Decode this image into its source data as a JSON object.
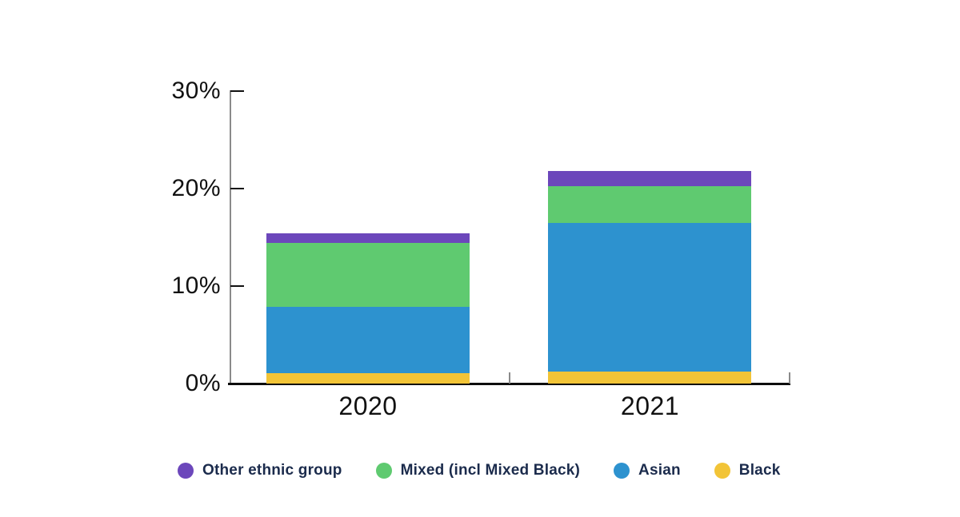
{
  "chart_data": {
    "type": "bar",
    "variant": "stacked",
    "title": "",
    "xlabel": "",
    "ylabel": "",
    "unit": "%",
    "categories": [
      "2020",
      "2021"
    ],
    "series": [
      {
        "name": "Black",
        "color": "#f2c437",
        "values": [
          1.0,
          1.2
        ]
      },
      {
        "name": "Asian",
        "color": "#2d92cf",
        "values": [
          6.8,
          15.3
        ]
      },
      {
        "name": "Mixed (incl Mixed Black)",
        "color": "#5fca70",
        "values": [
          6.6,
          3.7
        ]
      },
      {
        "name": "Other ethnic group",
        "color": "#6c47bb",
        "values": [
          1.0,
          1.6
        ]
      }
    ],
    "stack_totals": [
      15.4,
      21.8
    ],
    "ylim": [
      0,
      30
    ],
    "ytick_values": [
      0,
      10,
      20,
      30
    ],
    "ytick_labels": [
      "0%",
      "10%",
      "20%",
      "30%"
    ],
    "grid": false,
    "legend_position": "bottom",
    "legend_order": [
      "Other ethnic group",
      "Mixed (incl Mixed Black)",
      "Asian",
      "Black"
    ]
  },
  "colors": {
    "background": "#ffffff",
    "axis_line_gray": "#8a8a8a",
    "axis_line_black": "#0d0d0d",
    "tick_label": "#111111",
    "legend_text": "#1b2b4c"
  }
}
